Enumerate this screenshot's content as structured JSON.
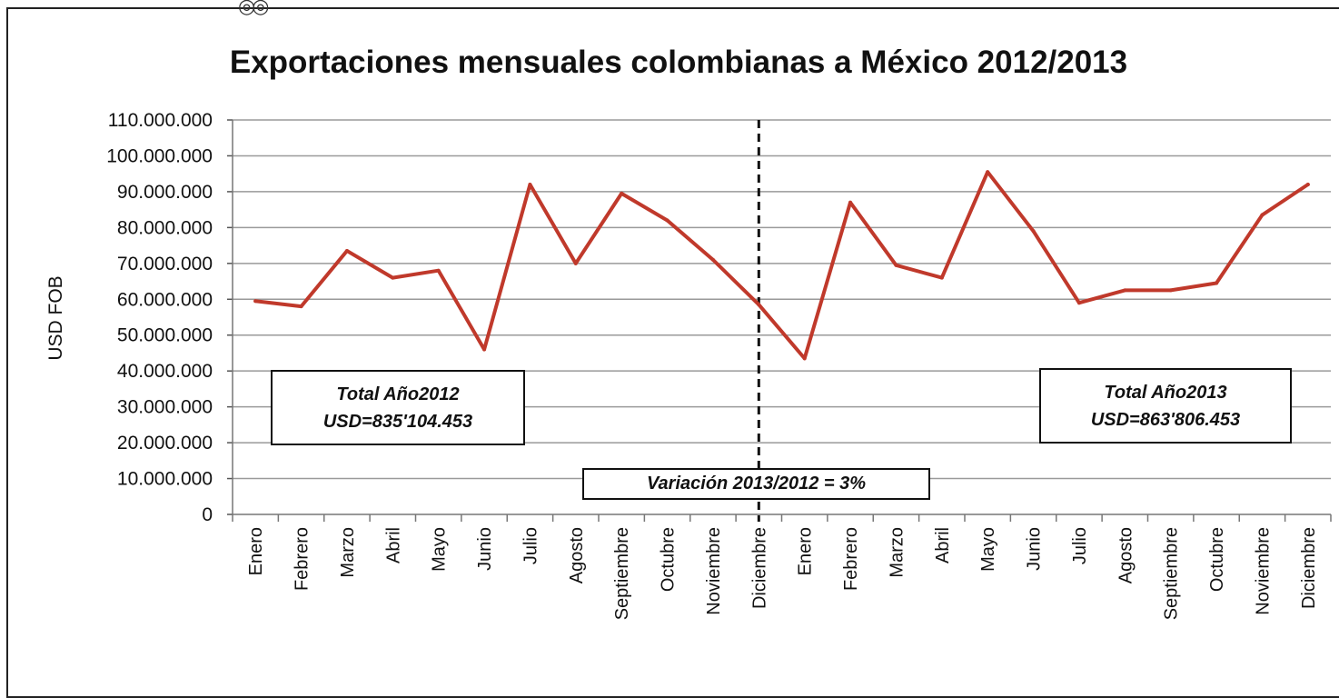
{
  "chart_data": {
    "type": "line",
    "title": "Exportaciones mensuales colombianas a México 2012/2013",
    "ylabel": "USD FOB",
    "xlabel": "",
    "ylim": [
      0,
      110000000
    ],
    "yticks": [
      "0",
      "10.000.000",
      "20.000.000",
      "30.000.000",
      "40.000.000",
      "50.000.000",
      "60.000.000",
      "70.000.000",
      "80.000.000",
      "90.000.000",
      "100.000.000",
      "110.000.000"
    ],
    "categories": [
      "Enero",
      "Febrero",
      "Marzo",
      "Abril",
      "Mayo",
      "Junio",
      "Julio",
      "Agosto",
      "Septiembre",
      "Octubre",
      "Noviembre",
      "Diciembre",
      "Enero",
      "Febrero",
      "Marzo",
      "Abril",
      "Mayo",
      "Junio",
      "Julio",
      "Agosto",
      "Septiembre",
      "Octubre",
      "Noviembre",
      "Diciembre"
    ],
    "series": [
      {
        "color": "#c0392b",
        "values": [
          59500000,
          58000000,
          73500000,
          66000000,
          68000000,
          46000000,
          92000000,
          70000000,
          89500000,
          82000000,
          71000000,
          58500000,
          43500000,
          87000000,
          69500000,
          66000000,
          95500000,
          79000000,
          59000000,
          62500000,
          62500000,
          64500000,
          83500000,
          92000000
        ]
      }
    ],
    "divider_after_index": 11,
    "grid": true,
    "annotations": {
      "total_2012": [
        "Total Año2012",
        "USD=835'104.453"
      ],
      "total_2013": [
        "Total Año2013",
        "USD=863'806.453"
      ],
      "variation": "Variación 2013/2012 = 3%"
    }
  }
}
